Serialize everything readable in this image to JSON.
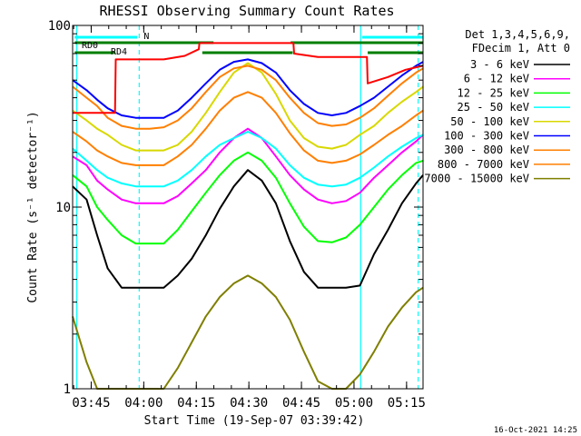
{
  "chart_data": {
    "type": "line",
    "title": "RHESSI Observing Summary Count Rates",
    "xlabel": "Start Time (19-Sep-07 03:39:42)",
    "ylabel": "Count Rate (s⁻¹ detector⁻¹)",
    "yscale": "log",
    "ylim": [
      1,
      100
    ],
    "y_ticks": [
      {
        "value": 1,
        "label": "1"
      },
      {
        "value": 10,
        "label": "10"
      },
      {
        "value": 100,
        "label": "100"
      }
    ],
    "xlim_minutes": [
      0,
      100
    ],
    "x_ticks": [
      {
        "minutes": 5.3,
        "label": "03:45"
      },
      {
        "minutes": 20.3,
        "label": "04:00"
      },
      {
        "minutes": 35.3,
        "label": "04:15"
      },
      {
        "minutes": 50.3,
        "label": "04:30"
      },
      {
        "minutes": 65.3,
        "label": "04:45"
      },
      {
        "minutes": 80.3,
        "label": "05:00"
      },
      {
        "minutes": 95.3,
        "label": "05:15"
      }
    ],
    "legend_header": [
      "Det 1,3,4,5,6,9,",
      "FDecim 1, Att 0"
    ],
    "series": [
      {
        "name": "3 - 6 keV",
        "color": "#000000",
        "x": [
          0,
          4,
          7,
          10,
          14,
          18,
          22,
          26,
          30,
          34,
          38,
          42,
          46,
          50,
          54,
          58,
          62,
          66,
          70,
          74,
          78,
          82,
          86,
          90,
          94,
          98,
          100
        ],
        "y": [
          13,
          11,
          7,
          4.6,
          3.6,
          3.6,
          3.6,
          3.6,
          4.2,
          5.2,
          7,
          9.8,
          13,
          16,
          14,
          10.5,
          6.5,
          4.4,
          3.6,
          3.6,
          3.6,
          3.7,
          5.5,
          7.5,
          10.5,
          13.5,
          15
        ]
      },
      {
        "name": "6 - 12 keV",
        "color": "#ff00ff",
        "x": [
          0,
          4,
          7,
          10,
          14,
          18,
          22,
          26,
          30,
          34,
          38,
          42,
          46,
          50,
          54,
          58,
          62,
          66,
          70,
          74,
          78,
          82,
          86,
          90,
          94,
          98,
          100
        ],
        "y": [
          19,
          17,
          14,
          12.5,
          11,
          10.5,
          10.5,
          10.5,
          11.5,
          13.5,
          16,
          20,
          24,
          27,
          24,
          19,
          15,
          12.5,
          11,
          10.5,
          10.8,
          12,
          14.5,
          17,
          20,
          23,
          25
        ]
      },
      {
        "name": "12 - 25 keV",
        "color": "#00ff00",
        "x": [
          0,
          4,
          7,
          10,
          14,
          18,
          22,
          26,
          30,
          34,
          38,
          42,
          46,
          50,
          54,
          58,
          62,
          66,
          70,
          74,
          78,
          82,
          86,
          90,
          94,
          98,
          100
        ],
        "y": [
          15,
          13,
          10,
          8.5,
          7,
          6.3,
          6.3,
          6.3,
          7.5,
          9.5,
          12,
          15,
          18,
          20,
          18,
          14.5,
          10.5,
          7.8,
          6.5,
          6.4,
          6.8,
          8,
          10,
          12.5,
          15,
          17.5,
          18
        ]
      },
      {
        "name": "25 - 50 keV",
        "color": "#00ffff",
        "x": [
          0,
          4,
          7,
          10,
          14,
          18,
          22,
          26,
          30,
          34,
          38,
          42,
          46,
          50,
          54,
          58,
          62,
          66,
          70,
          74,
          78,
          82,
          86,
          90,
          94,
          98,
          100
        ],
        "y": [
          21,
          18,
          16,
          14.5,
          13.5,
          13,
          13,
          13,
          14,
          16,
          19,
          22,
          24,
          26,
          24,
          21,
          17,
          14.5,
          13.3,
          13,
          13.3,
          14.5,
          16.5,
          19,
          21.5,
          24,
          25
        ]
      },
      {
        "name": "50 - 100 keV",
        "color": "#d8d800",
        "x": [
          0,
          4,
          7,
          10,
          14,
          18,
          22,
          26,
          30,
          34,
          38,
          42,
          46,
          50,
          54,
          58,
          62,
          66,
          70,
          74,
          78,
          82,
          86,
          90,
          94,
          98,
          100
        ],
        "y": [
          34,
          30,
          27,
          25,
          22,
          20.5,
          20.5,
          20.5,
          22,
          26,
          33,
          43,
          55,
          62,
          55,
          42,
          30,
          24,
          21.5,
          21,
          22,
          25,
          28,
          33,
          38,
          43,
          46
        ]
      },
      {
        "name": "100 - 300 keV",
        "color": "#0000ff",
        "x": [
          0,
          4,
          7,
          10,
          14,
          18,
          22,
          26,
          30,
          34,
          38,
          42,
          46,
          50,
          54,
          58,
          62,
          66,
          70,
          74,
          78,
          82,
          86,
          90,
          94,
          98,
          100
        ],
        "y": [
          50,
          44,
          39,
          35,
          32,
          31,
          31,
          31,
          34,
          40,
          48,
          57,
          63,
          65,
          62,
          55,
          44,
          37,
          33,
          32,
          33,
          36,
          40,
          46,
          53,
          60,
          63
        ]
      },
      {
        "name": "300 - 800 keV",
        "color": "#ff7f00",
        "x": [
          0,
          4,
          7,
          10,
          14,
          18,
          22,
          26,
          30,
          34,
          38,
          42,
          46,
          50,
          54,
          58,
          62,
          66,
          70,
          74,
          78,
          82,
          86,
          90,
          94,
          98,
          100
        ],
        "y": [
          46,
          40,
          36,
          31,
          28,
          27,
          27,
          27.5,
          30,
          35,
          43,
          52,
          58,
          60,
          57,
          50,
          40,
          33,
          29,
          28,
          28.5,
          31,
          35,
          41,
          48,
          55,
          58
        ]
      },
      {
        "name": "800 - 7000 keV",
        "color": "#ff7f00",
        "x": [
          0,
          4,
          7,
          10,
          14,
          18,
          22,
          26,
          30,
          34,
          38,
          42,
          46,
          50,
          54,
          58,
          62,
          66,
          70,
          74,
          78,
          82,
          86,
          90,
          94,
          98,
          100
        ],
        "y": [
          26,
          23,
          20.5,
          19,
          17.5,
          17,
          17,
          17,
          19,
          22,
          27,
          34,
          40,
          43,
          40,
          33,
          25.5,
          20.5,
          18,
          17.5,
          18,
          19.5,
          22,
          25,
          28,
          32,
          34
        ]
      },
      {
        "name": "7000 - 15000 keV",
        "color": "#7f7f00",
        "x": [
          0,
          4,
          7,
          10,
          14,
          18,
          22,
          26,
          30,
          34,
          38,
          42,
          46,
          50,
          54,
          58,
          62,
          66,
          70,
          74,
          78,
          82,
          86,
          90,
          94,
          98,
          100
        ],
        "y": [
          2.5,
          1.4,
          1,
          1,
          1,
          1,
          1,
          1,
          1.3,
          1.8,
          2.5,
          3.2,
          3.8,
          4.2,
          3.8,
          3.2,
          2.4,
          1.6,
          1.1,
          1,
          1,
          1.2,
          1.6,
          2.2,
          2.8,
          3.4,
          3.6
        ]
      },
      {
        "name": "",
        "color": "#ff0000",
        "x": [
          0,
          12.1,
          12.3,
          18,
          26,
          32,
          36,
          36.2,
          40,
          50,
          60,
          63,
          63.2,
          70,
          80,
          84,
          84.2,
          90,
          95,
          100
        ],
        "y": [
          33,
          33,
          65,
          65,
          65,
          68,
          74,
          80,
          80,
          80,
          80,
          80,
          70,
          67,
          67,
          67,
          48,
          52,
          57,
          60
        ]
      }
    ],
    "vertical_lines": [
      {
        "minutes": 1.2,
        "style": "solid",
        "color": "#00ffff"
      },
      {
        "minutes": 19.0,
        "style": "dashed",
        "color": "#00ffff"
      },
      {
        "minutes": 82.2,
        "style": "solid",
        "color": "#00ffff"
      },
      {
        "minutes": 98.6,
        "style": "dashed",
        "color": "#00ffff"
      }
    ],
    "segments": [
      {
        "label": "N",
        "color": "#00ffff",
        "row": "top",
        "ranges": [
          [
            0.6,
            18.4
          ],
          [
            82.6,
            100
          ]
        ]
      },
      {
        "label": "RD0",
        "color": "#007f00",
        "row": "mid",
        "ranges": [
          [
            0.6,
            40.2
          ],
          [
            62.2,
            100
          ]
        ]
      },
      {
        "label": "RD4",
        "color": "#007f00",
        "row": "low",
        "ranges": [
          [
            0.6,
            12.2
          ],
          [
            37.0,
            62.8
          ],
          [
            84.2,
            100
          ]
        ]
      }
    ],
    "timestamp": "16-Oct-2021 14:25"
  }
}
